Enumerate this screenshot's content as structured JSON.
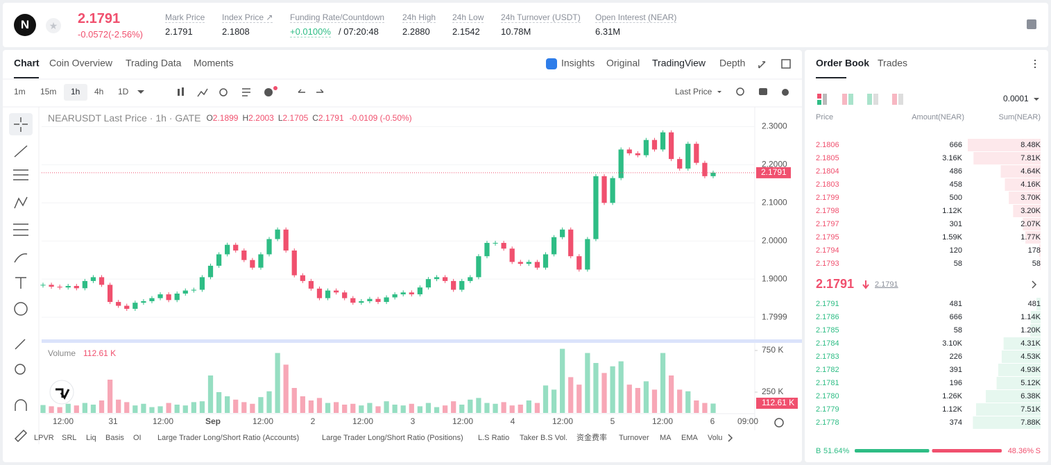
{
  "header": {
    "logo": "N",
    "price": "2.1791",
    "change": "-0.0572(-2.56%)",
    "stats": [
      {
        "label": "Mark Price",
        "value": "2.1791"
      },
      {
        "label": "Index Price ↗",
        "value": "2.1808"
      },
      {
        "label": "Funding Rate/Countdown",
        "value": "+0.0100%",
        "value2": "/ 07:20:48"
      },
      {
        "label": "24h High",
        "value": "2.2880"
      },
      {
        "label": "24h Low",
        "value": "2.1542"
      },
      {
        "label": "24h Turnover (USDT)",
        "value": "10.78M"
      },
      {
        "label": "Open Interest (NEAR)",
        "value": "6.31M"
      }
    ]
  },
  "tabs": [
    "Chart",
    "Coin Overview",
    "Trading Data",
    "Moments"
  ],
  "view_tabs": [
    "Insights",
    "Original",
    "TradingView",
    "Depth"
  ],
  "timeframes": [
    "1m",
    "15m",
    "1h",
    "4h",
    "1D"
  ],
  "price_type": "Last Price",
  "legend": {
    "symbol": "NEARUSDT Last Price · 1h · GATE",
    "o": "O",
    "ov": "2.1899",
    "h": "H",
    "hv": "2.2003",
    "l": "L",
    "lv": "2.1705",
    "c": "C",
    "cv": "2.1791",
    "chg": "-0.0109 (-0.50%)"
  },
  "volume_legend": {
    "name": "Volume",
    "value": "112.61 K"
  },
  "chart": {
    "type": "candlestick",
    "ylim": [
      1.74,
      2.35
    ],
    "yticks": [
      2.3,
      {
        "value": 2.2,
        "label": "2.2000"
      },
      {
        "value": 2.1,
        "label": "2.1000"
      },
      {
        "value": 2.0,
        "label": "2.0000"
      },
      {
        "value": 1.9,
        "label": "1.9000"
      },
      1.7999
    ],
    "yticks_labels": [
      "2.3000",
      "2.2000",
      "2.1000",
      "2.0000",
      "1.9000",
      "1.7999"
    ],
    "last_price": {
      "value": 2.1791,
      "label": "2.1791"
    },
    "closes": [
      1.885,
      1.88,
      1.878,
      1.882,
      1.876,
      1.895,
      1.905,
      1.885,
      1.84,
      1.83,
      1.822,
      1.838,
      1.842,
      1.85,
      1.86,
      1.845,
      1.862,
      1.87,
      1.872,
      1.905,
      1.935,
      1.965,
      1.99,
      1.975,
      1.95,
      1.93,
      1.965,
      2.005,
      2.03,
      1.975,
      1.91,
      1.895,
      1.875,
      1.85,
      1.87,
      1.865,
      1.85,
      1.838,
      1.842,
      1.848,
      1.84,
      1.852,
      1.86,
      1.865,
      1.86,
      1.878,
      1.9,
      1.905,
      1.895,
      1.872,
      1.895,
      1.905,
      1.96,
      1.995,
      1.995,
      1.98,
      1.945,
      1.94,
      1.945,
      1.93,
      1.965,
      2.01,
      2.03,
      1.96,
      1.925,
      2.005,
      2.17,
      2.1,
      2.165,
      2.24,
      2.23,
      2.225,
      2.265,
      2.24,
      2.285,
      2.215,
      2.19,
      2.255,
      2.205,
      2.17,
      2.1791
    ],
    "volumes": [
      95000,
      80000,
      70000,
      110000,
      90000,
      120000,
      100000,
      150000,
      400000,
      160000,
      130000,
      90000,
      110000,
      70000,
      80000,
      120000,
      100000,
      90000,
      130000,
      140000,
      450000,
      250000,
      200000,
      160000,
      130000,
      110000,
      190000,
      260000,
      720000,
      580000,
      300000,
      200000,
      150000,
      180000,
      120000,
      130000,
      100000,
      110000,
      90000,
      120000,
      80000,
      140000,
      100000,
      90000,
      110000,
      80000,
      120000,
      70000,
      90000,
      140000,
      100000,
      160000,
      180000,
      120000,
      110000,
      130000,
      90000,
      100000,
      150000,
      120000,
      330000,
      280000,
      770000,
      430000,
      340000,
      720000,
      600000,
      480000,
      560000,
      620000,
      340000,
      300000,
      380000,
      280000,
      720000,
      450000,
      280000,
      260000,
      150000,
      120000,
      112610
    ],
    "vlim": [
      0,
      800000
    ],
    "vticks": [
      {
        "value": 750000,
        "label": "750 K"
      },
      {
        "value": 250000,
        "label": "250 K"
      }
    ],
    "last_volume_label": "112.61 K",
    "up_color": "#2ebd85",
    "down_color": "#f0506e",
    "x_labels": [
      "12:00",
      "31",
      "12:00",
      "Sep",
      "12:00",
      "2",
      "12:00",
      "3",
      "12:00",
      "4",
      "12:00",
      "5",
      "12:00",
      "6",
      "09:00"
    ]
  },
  "indicators": [
    "LPVR",
    "SRL",
    "Liq",
    "Basis",
    "OI",
    "Large Trader Long/Short Ratio (Accounts)",
    "Large Trader Long/Short Ratio (Positions)",
    "L.S Ratio",
    "Taker B.S Vol.",
    "资金费率",
    "Turnover",
    "MA",
    "EMA",
    "Volu"
  ],
  "orderbook": {
    "tabs": [
      "Order Book",
      "Trades"
    ],
    "precision": "0.0001",
    "columns": [
      "Price",
      "Amount(NEAR)",
      "Sum(NEAR)"
    ],
    "asks": [
      [
        "2.1806",
        "666",
        {
          "value": 8480,
          "label": "8.48K"
        }
      ],
      [
        "2.1805",
        "3.16K",
        {
          "value": 7810,
          "label": "7.81K"
        }
      ],
      [
        "2.1804",
        "486",
        {
          "value": 4640,
          "label": "4.64K"
        }
      ],
      [
        "2.1803",
        "458",
        {
          "value": 4160,
          "label": "4.16K"
        }
      ],
      [
        "2.1799",
        "500",
        {
          "value": 3700,
          "label": "3.70K"
        }
      ],
      [
        "2.1798",
        "1.12K",
        {
          "value": 3200,
          "label": "3.20K"
        }
      ],
      [
        "2.1797",
        "301",
        {
          "value": 2070,
          "label": "2.07K"
        }
      ],
      [
        "2.1795",
        "1.59K",
        {
          "value": 1770,
          "label": "1.77K"
        }
      ],
      [
        "2.1794",
        "120",
        {
          "value": 178,
          "label": "178"
        }
      ],
      [
        "2.1793",
        "58",
        {
          "value": 58,
          "label": "58"
        }
      ]
    ],
    "mid": "2.1791",
    "mid_ref": "2.1791",
    "bids": [
      [
        "2.1791",
        "481",
        {
          "value": 481,
          "label": "481"
        }
      ],
      [
        "2.1786",
        "666",
        {
          "value": 1140,
          "label": "1.14K"
        }
      ],
      [
        "2.1785",
        "58",
        {
          "value": 1200,
          "label": "1.20K"
        }
      ],
      [
        "2.1784",
        "3.10K",
        {
          "value": 4310,
          "label": "4.31K"
        }
      ],
      [
        "2.1783",
        "226",
        {
          "value": 4530,
          "label": "4.53K"
        }
      ],
      [
        "2.1782",
        "391",
        {
          "value": 4930,
          "label": "4.93K"
        }
      ],
      [
        "2.1781",
        "196",
        {
          "value": 5120,
          "label": "5.12K"
        }
      ],
      [
        "2.1780",
        "1.26K",
        {
          "value": 6380,
          "label": "6.38K"
        }
      ],
      [
        "2.1779",
        "1.12K",
        {
          "value": 7510,
          "label": "7.51K"
        }
      ],
      [
        "2.1778",
        "374",
        {
          "value": 7880,
          "label": "7.88K"
        }
      ]
    ],
    "buy_label": "B",
    "buy": {
      "value": 51.64,
      "label": "51.64%"
    },
    "sell_label": "S",
    "sell": {
      "value": 48.36,
      "label": "48.36%"
    }
  }
}
